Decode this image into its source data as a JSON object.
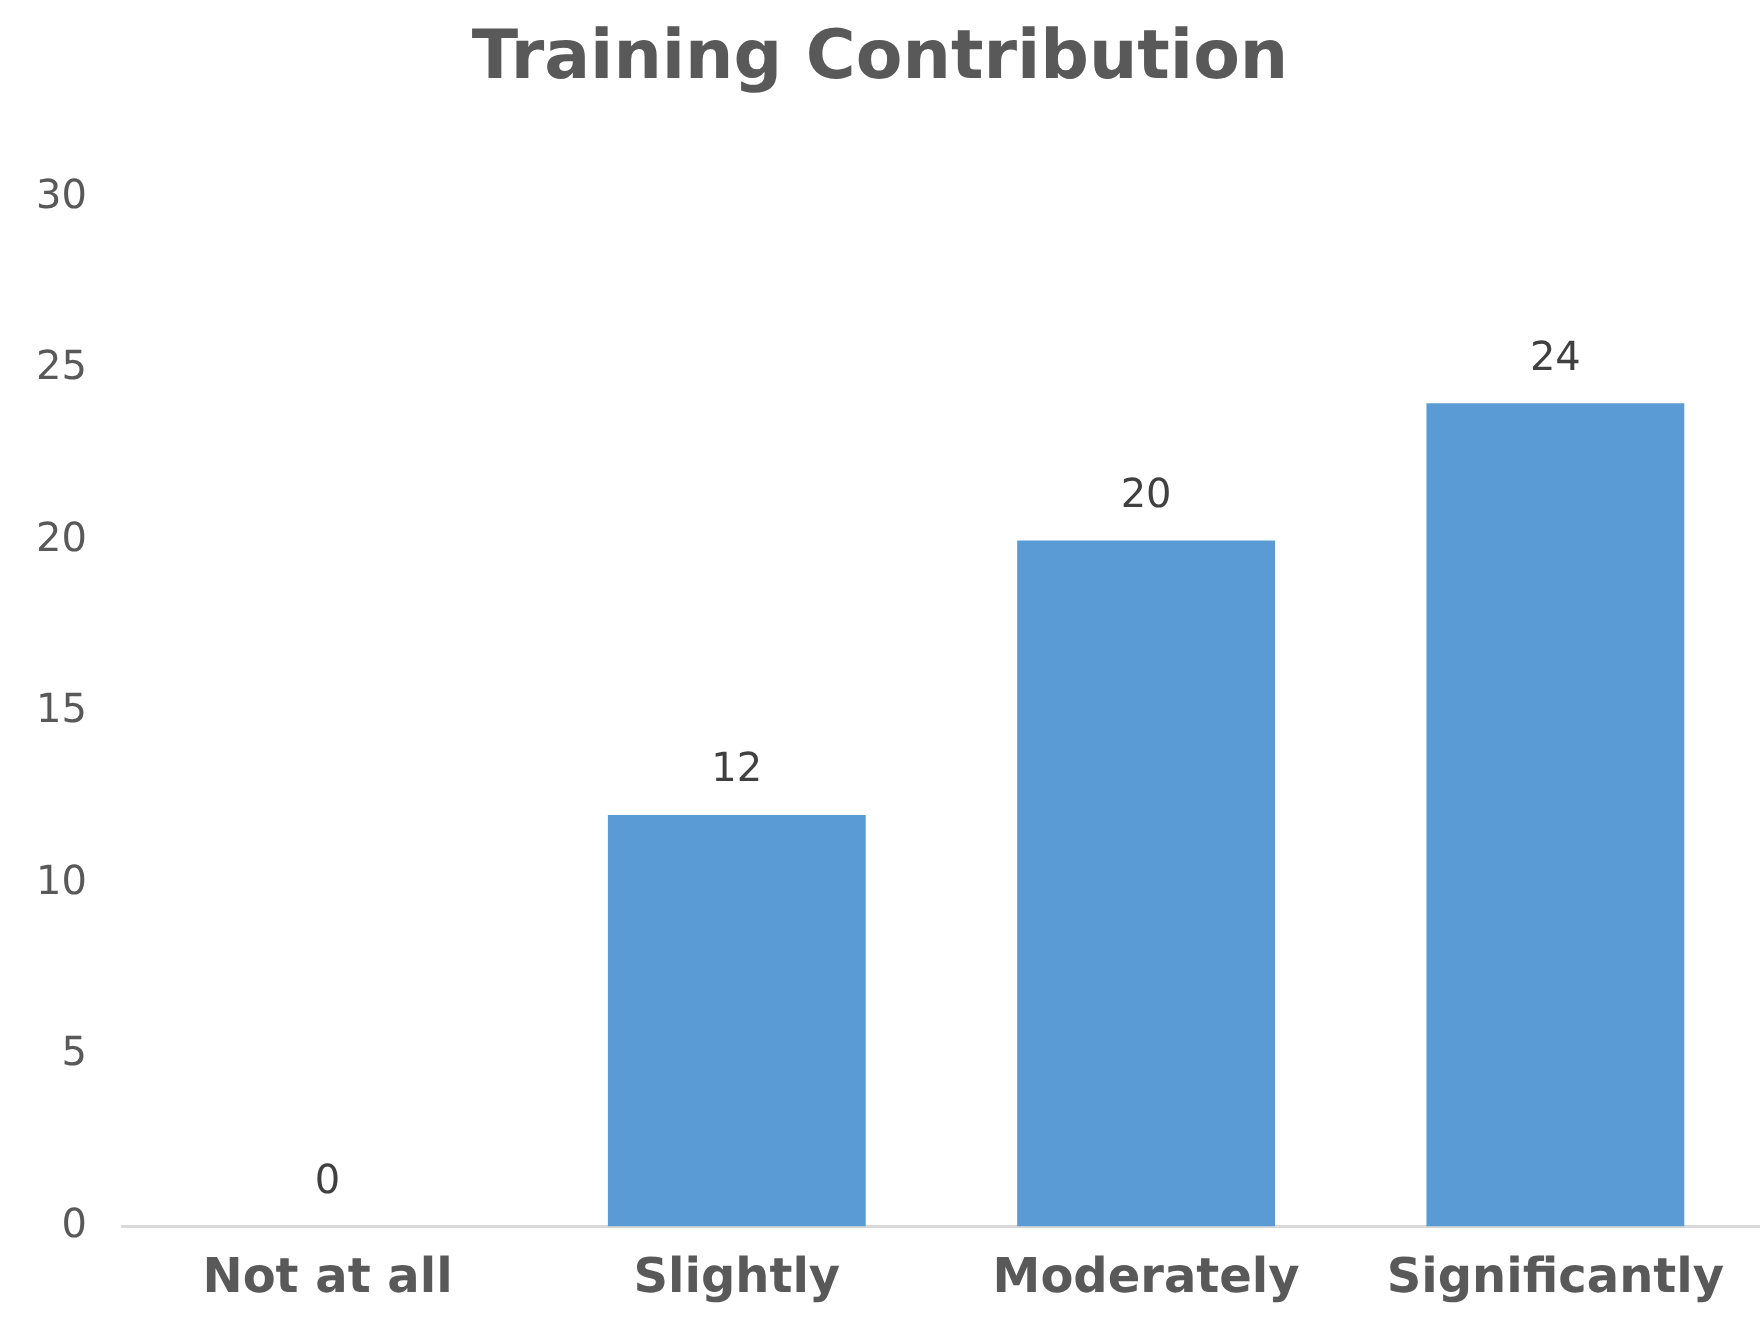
{
  "chart_data": {
    "type": "bar",
    "title": "Training Contribution",
    "categories": [
      "Not at all",
      "Slightly",
      "Moderately",
      "Significantly"
    ],
    "values": [
      0,
      12,
      20,
      24
    ],
    "color": "#5b9bd5",
    "ylim": [
      0,
      30
    ],
    "yticks": [
      0,
      5,
      10,
      15,
      20,
      25,
      30
    ],
    "data_labels": true
  }
}
